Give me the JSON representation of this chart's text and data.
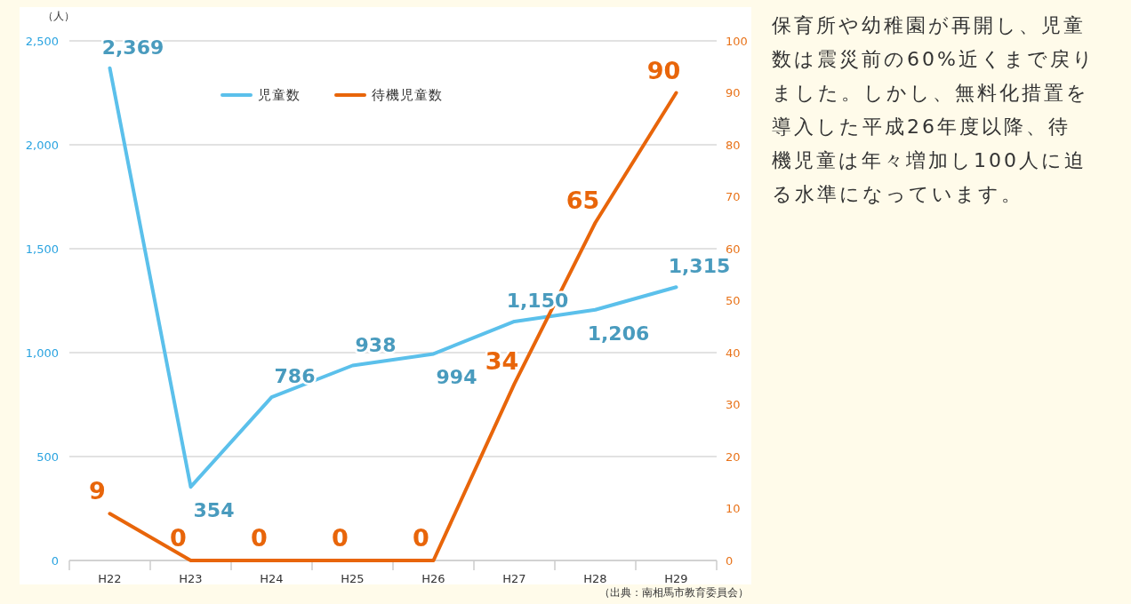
{
  "chart_data": {
    "type": "line",
    "ylabel": "（人）",
    "categories": [
      "H22",
      "H23",
      "H24",
      "H25",
      "H26",
      "H27",
      "H28",
      "H29"
    ],
    "series": [
      {
        "name": "児童数",
        "color": "#5bc0eb",
        "values": [
          2369,
          354,
          786,
          938,
          994,
          1150,
          1206,
          1315
        ],
        "value_labels": [
          "2,369",
          "354",
          "786",
          "938",
          "994",
          "1,150",
          "1,206",
          "1,315"
        ]
      },
      {
        "name": "待機児童数",
        "color": "#e8650a",
        "values": [
          9,
          0,
          0,
          0,
          0,
          34,
          65,
          90
        ],
        "axis": "y2",
        "value_labels": [
          "9",
          "0",
          "0",
          "0",
          "0",
          "34",
          "65",
          "90"
        ]
      }
    ],
    "ylim": [
      0,
      2500
    ],
    "yticks": [
      {
        "value": 0,
        "label": "0"
      },
      {
        "value": 500,
        "label": "500"
      },
      {
        "value": 1000,
        "label": "1,000"
      },
      {
        "value": 1500,
        "label": "1,500"
      },
      {
        "value": 2000,
        "label": "2,000"
      },
      {
        "value": 2500,
        "label": "2,500"
      }
    ],
    "y2lim": [
      0,
      100
    ],
    "y2ticks": [
      0,
      10,
      20,
      30,
      40,
      50,
      60,
      70,
      80,
      90,
      100
    ],
    "grid": "y",
    "legend": "top",
    "marker": "none",
    "line_style": "solid",
    "annotations": [
      "（出典：南相馬市教育委員会）",
      "保育所や幼稚園が再開し、児童",
      "数は震災前の60%近くまで戻り",
      "ました。しかし、無料化措置を",
      "導入した平成26年度以降、待",
      "機児童は年々増加し100人に迫",
      "る水準になっています。"
    ]
  }
}
